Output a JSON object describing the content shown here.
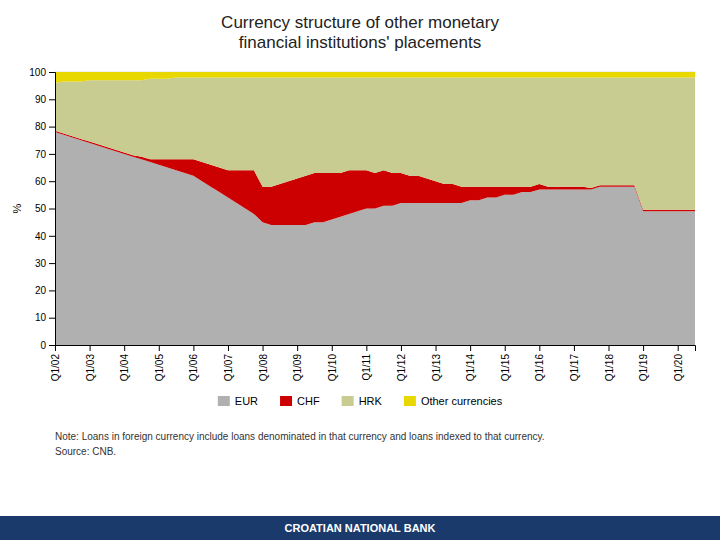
{
  "chart_data": {
    "type": "area",
    "stacked": true,
    "title": "Currency structure of other monetary\nfinancial institutions' placements",
    "y_label": "%",
    "annotations": [
      "Note: Loans in foreign currency include loans denominated in that currency and loans indexed to that currency.",
      "Source: CNB.",
      "CROATIAN NATIONAL BANK"
    ],
    "categories": [
      "Q1/02",
      null,
      null,
      null,
      "Q1/03",
      null,
      null,
      null,
      "Q1/04",
      null,
      null,
      null,
      "Q1/05",
      null,
      null,
      null,
      "Q1/06",
      null,
      null,
      null,
      "Q1/07",
      null,
      null,
      null,
      "Q1/08",
      null,
      null,
      null,
      "Q1/09",
      null,
      null,
      null,
      "Q1/10",
      null,
      null,
      null,
      "Q1/11",
      null,
      null,
      null,
      "Q1/12",
      null,
      null,
      null,
      "Q1/13",
      null,
      null,
      null,
      "Q1/14",
      null,
      null,
      null,
      "Q1/15",
      null,
      null,
      null,
      "Q1/16",
      null,
      null,
      null,
      "Q1/17",
      null,
      null,
      null,
      "Q1/18",
      null,
      null,
      null,
      "Q1/19",
      null,
      null,
      null,
      "Q1/20",
      null,
      null
    ],
    "series": [
      {
        "name": "EUR",
        "color": "#b0b0b0",
        "values": [
          78,
          77,
          76,
          75,
          74,
          73,
          72,
          71,
          70,
          69,
          68,
          67,
          66,
          65,
          64,
          63,
          62,
          60,
          58,
          56,
          54,
          52,
          50,
          48,
          45,
          44,
          44,
          44,
          44,
          44,
          45,
          45,
          46,
          47,
          48,
          49,
          50,
          50,
          51,
          51,
          52,
          52,
          52,
          52,
          52,
          52,
          52,
          52,
          53,
          53,
          54,
          54,
          55,
          55,
          56,
          56,
          57,
          57,
          57,
          57,
          57,
          57,
          57,
          58,
          58,
          58,
          58,
          58,
          49,
          49,
          49,
          49,
          49,
          49,
          49
        ]
      },
      {
        "name": "CHF",
        "color": "#cc0000",
        "values": [
          0.5,
          0.5,
          0.5,
          0.5,
          0.5,
          0.5,
          0.5,
          0.5,
          0.5,
          0.5,
          1,
          1,
          2,
          3,
          4,
          5,
          6,
          7,
          8,
          9,
          10,
          12,
          14,
          16,
          13,
          14,
          15,
          16,
          17,
          18,
          18,
          18,
          17,
          16,
          16,
          15,
          14,
          13,
          13,
          12,
          11,
          10,
          10,
          9,
          8,
          7,
          7,
          6,
          5,
          5,
          4,
          4,
          3,
          3,
          2,
          2,
          2,
          1,
          1,
          1,
          1,
          1,
          0.5,
          0.5,
          0.5,
          0.5,
          0.5,
          0.5,
          0.5,
          0.5,
          0.5,
          0.5,
          0.5,
          0.5,
          0.5
        ]
      },
      {
        "name": "HRK",
        "color": "#c8cc90",
        "values": [
          17.5,
          19,
          20,
          21,
          22.5,
          23.5,
          24.5,
          25.5,
          26.5,
          27.5,
          28,
          29.5,
          29.5,
          29.5,
          30,
          30,
          30,
          31,
          32,
          33,
          34,
          34,
          34,
          34,
          40,
          40,
          39,
          38,
          37,
          36,
          35,
          35,
          35,
          35,
          34,
          34,
          34,
          35,
          34,
          35,
          35,
          36,
          36,
          37,
          38,
          39,
          39,
          40,
          40,
          40,
          40,
          40,
          40,
          40,
          40,
          40,
          39,
          40,
          40,
          40,
          40,
          40,
          40.5,
          39.5,
          39.5,
          39.5,
          39.5,
          39.5,
          48.5,
          48.5,
          48.5,
          48.5,
          48.5,
          48.5,
          48.5
        ]
      },
      {
        "name": "Other currencies",
        "color": "#e8d800",
        "values": [
          4,
          3.5,
          3.5,
          3.5,
          3,
          3,
          3,
          3,
          3,
          3,
          3,
          2.5,
          2.5,
          2.5,
          2,
          2,
          2,
          2,
          2,
          2,
          2,
          2,
          2,
          2,
          2,
          2,
          2,
          2,
          2,
          2,
          2,
          2,
          2,
          2,
          2,
          2,
          2,
          2,
          2,
          2,
          2,
          2,
          2,
          2,
          2,
          2,
          2,
          2,
          2,
          2,
          2,
          2,
          2,
          2,
          2,
          2,
          2,
          2,
          2,
          2,
          2,
          2,
          2,
          2,
          2,
          2,
          2,
          2,
          2,
          2,
          2,
          2,
          2,
          2,
          2
        ]
      }
    ],
    "ylim": [
      0,
      100
    ],
    "yticks": [
      0,
      10,
      20,
      30,
      40,
      50,
      60,
      70,
      80,
      90,
      100
    ],
    "grid": true,
    "legend": "bottom"
  }
}
